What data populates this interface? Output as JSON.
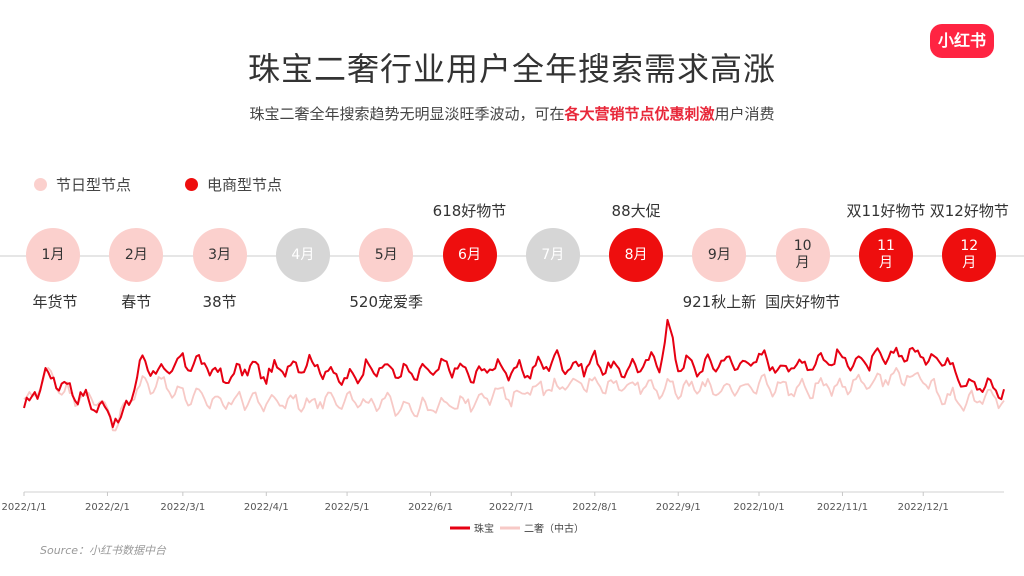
{
  "title": "珠宝二奢行业用户全年搜索需求高涨",
  "subtitle": {
    "pre": "珠宝二奢全年搜索趋势无明显淡旺季波动，可在",
    "highlight": "各大营销节点优惠刺激",
    "post": "用户消费"
  },
  "logo": "小红书",
  "node_legend": {
    "holiday": "节日型节点",
    "ecommerce": "电商型节点"
  },
  "colors": {
    "ecommerce": "#ee0e0e",
    "holiday": "#fbd0cd",
    "inactive": "#d6d6d6",
    "series_jewelry": "#e60012",
    "series_luxury": "#f7c9c6"
  },
  "months": [
    {
      "label": "1月",
      "type": "holiday"
    },
    {
      "label": "2月",
      "type": "holiday"
    },
    {
      "label": "3月",
      "type": "holiday"
    },
    {
      "label": "4月",
      "type": "none"
    },
    {
      "label": "5月",
      "type": "holiday"
    },
    {
      "label": "6月",
      "type": "ecommerce"
    },
    {
      "label": "7月",
      "type": "none"
    },
    {
      "label": "8月",
      "type": "ecommerce"
    },
    {
      "label": "9月",
      "type": "holiday"
    },
    {
      "label": "10月",
      "type": "holiday"
    },
    {
      "label": "11月",
      "type": "ecommerce"
    },
    {
      "label": "12月",
      "type": "ecommerce"
    }
  ],
  "annotations_above": [
    {
      "month_index": 5,
      "text": "618好物节"
    },
    {
      "month_index": 7,
      "text": "88大促"
    },
    {
      "month_index": 10,
      "text": "双11好物节"
    },
    {
      "month_index": 11,
      "text": "双12好物节"
    }
  ],
  "annotations_below": [
    {
      "month_index": 0,
      "text": "年货节"
    },
    {
      "month_index": 1,
      "text": "春节"
    },
    {
      "month_index": 2,
      "text": "38节"
    },
    {
      "month_index": 4,
      "text": "520宠爱季"
    },
    {
      "month_index": 8,
      "text": "921秋上新"
    },
    {
      "month_index": 9,
      "text": "国庆好物节"
    }
  ],
  "chart_data": {
    "type": "line",
    "x_ticks": [
      "2022/1/1",
      "2022/2/1",
      "2022/3/1",
      "2022/4/1",
      "2022/5/1",
      "2022/6/1",
      "2022/7/1",
      "2022/8/1",
      "2022/9/1",
      "2022/10/1",
      "2022/11/1",
      "2022/12/1"
    ],
    "x_tick_days": [
      0,
      31,
      59,
      90,
      120,
      151,
      181,
      212,
      243,
      273,
      304,
      334
    ],
    "y_axis_visible": false,
    "series": [
      {
        "name": "珠宝",
        "color": "#e60012",
        "days": [
          0,
          8,
          16,
          24,
          31,
          36,
          40,
          44,
          52,
          59,
          67,
          75,
          83,
          90,
          98,
          106,
          114,
          120,
          128,
          136,
          144,
          151,
          159,
          167,
          175,
          181,
          189,
          197,
          205,
          212,
          220,
          228,
          236,
          239,
          243,
          251,
          259,
          267,
          273,
          281,
          289,
          297,
          304,
          312,
          320,
          328,
          334,
          342,
          350,
          357,
          364
        ],
        "values": [
          40,
          62,
          55,
          46,
          41,
          33,
          52,
          70,
          62,
          70,
          68,
          59,
          67,
          62,
          67,
          69,
          63,
          58,
          67,
          65,
          62,
          64,
          67,
          61,
          68,
          63,
          65,
          71,
          66,
          70,
          64,
          67,
          70,
          90,
          69,
          66,
          70,
          68,
          72,
          66,
          68,
          71,
          71,
          69,
          72,
          75,
          73,
          71,
          58,
          55,
          52
        ]
      },
      {
        "name": "二奢（中古）",
        "color": "#f7c9c6",
        "days": [
          0,
          6,
          10,
          14,
          20,
          28,
          32,
          34,
          38,
          44,
          52,
          59,
          67,
          75,
          83,
          90,
          98,
          106,
          114,
          120,
          128,
          136,
          144,
          151,
          159,
          167,
          175,
          181,
          189,
          197,
          205,
          212,
          220,
          228,
          236,
          243,
          251,
          259,
          267,
          273,
          281,
          289,
          297,
          304,
          312,
          320,
          328,
          334,
          342,
          350,
          357,
          364
        ],
        "values": [
          45,
          55,
          65,
          52,
          50,
          46,
          40,
          30,
          44,
          57,
          57,
          50,
          47,
          46,
          48,
          45,
          47,
          45,
          49,
          47,
          44,
          45,
          43,
          42,
          44,
          47,
          52,
          48,
          55,
          54,
          56,
          58,
          55,
          57,
          54,
          53,
          55,
          54,
          52,
          57,
          55,
          53,
          55,
          56,
          58,
          60,
          62,
          58,
          50,
          46,
          48,
          48
        ]
      }
    ],
    "legend_position": "bottom-center",
    "grid": false
  },
  "source": "Source：小红书数据中台"
}
